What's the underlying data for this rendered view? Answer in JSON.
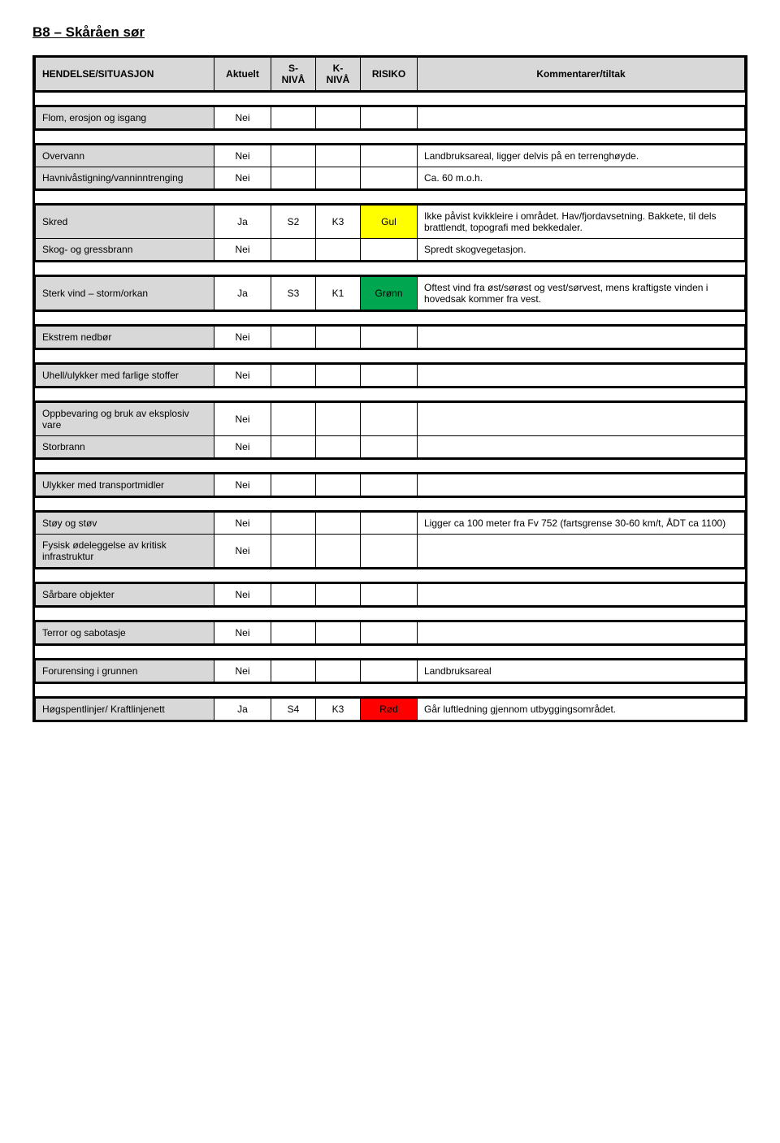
{
  "title": "B8 – Skåråen sør",
  "headers": {
    "hendelse": "HENDELSE/SITUASJON",
    "aktuelt": "Aktuelt",
    "sniva": "S-\nNIVÅ",
    "kniva": "K-\nNIVÅ",
    "risiko": "RISIKO",
    "kommentarer": "Kommentarer/tiltak"
  },
  "colors": {
    "header_bg": "#d8d8d8",
    "gul": "#ffff00",
    "gronn": "#00a650",
    "rod": "#ff0000"
  },
  "rows": [
    {
      "label": "Flom, erosjon og isgang",
      "aktuelt": "Nei",
      "s": "",
      "k": "",
      "risiko": "",
      "risk_color": "",
      "komm": ""
    },
    {
      "label": "Overvann",
      "aktuelt": "Nei",
      "s": "",
      "k": "",
      "risiko": "",
      "risk_color": "",
      "komm": "Landbruksareal, ligger delvis på en terrenghøyde."
    },
    {
      "label": "Havnivåstigning/vanninntrenging",
      "aktuelt": "Nei",
      "s": "",
      "k": "",
      "risiko": "",
      "risk_color": "",
      "komm": "Ca. 60 m.o.h."
    },
    {
      "label": "Skred",
      "aktuelt": "Ja",
      "s": "S2",
      "k": "K3",
      "risiko": "Gul",
      "risk_color": "#ffff00",
      "komm": "Ikke påvist kvikkleire i området. Hav/fjordavsetning. Bakkete, til dels brattlendt, topografi med bekkedaler."
    },
    {
      "label": "Skog- og gressbrann",
      "aktuelt": "Nei",
      "s": "",
      "k": "",
      "risiko": "",
      "risk_color": "",
      "komm": "Spredt skogvegetasjon."
    },
    {
      "label": "Sterk vind – storm/orkan",
      "aktuelt": "Ja",
      "s": "S3",
      "k": "K1",
      "risiko": "Grønn",
      "risk_color": "#00a650",
      "komm": "Oftest vind fra øst/sørøst og vest/sørvest, mens kraftigste vinden i hovedsak kommer fra vest."
    },
    {
      "label": "Ekstrem nedbør",
      "aktuelt": "Nei",
      "s": "",
      "k": "",
      "risiko": "",
      "risk_color": "",
      "komm": ""
    },
    {
      "label": "Uhell/ulykker med farlige stoffer",
      "aktuelt": "Nei",
      "s": "",
      "k": "",
      "risiko": "",
      "risk_color": "",
      "komm": ""
    },
    {
      "label": "Oppbevaring og bruk av eksplosiv vare",
      "aktuelt": "Nei",
      "s": "",
      "k": "",
      "risiko": "",
      "risk_color": "",
      "komm": ""
    },
    {
      "label": "Storbrann",
      "aktuelt": "Nei",
      "s": "",
      "k": "",
      "risiko": "",
      "risk_color": "",
      "komm": ""
    },
    {
      "label": "Ulykker med transportmidler",
      "aktuelt": "Nei",
      "s": "",
      "k": "",
      "risiko": "",
      "risk_color": "",
      "komm": ""
    },
    {
      "label": "Støy og støv",
      "aktuelt": "Nei",
      "s": "",
      "k": "",
      "risiko": "",
      "risk_color": "",
      "komm": "Ligger ca 100 meter fra Fv 752 (fartsgrense 30-60 km/t, ÅDT ca 1100)"
    },
    {
      "label": "Fysisk ødeleggelse av kritisk infrastruktur",
      "aktuelt": "Nei",
      "s": "",
      "k": "",
      "risiko": "",
      "risk_color": "",
      "komm": ""
    },
    {
      "label": "Sårbare objekter",
      "aktuelt": "Nei",
      "s": "",
      "k": "",
      "risiko": "",
      "risk_color": "",
      "komm": ""
    },
    {
      "label": "Terror og sabotasje",
      "aktuelt": "Nei",
      "s": "",
      "k": "",
      "risiko": "",
      "risk_color": "",
      "komm": ""
    },
    {
      "label": "Forurensing i grunnen",
      "aktuelt": "Nei",
      "s": "",
      "k": "",
      "risiko": "",
      "risk_color": "",
      "komm": "Landbruksareal"
    },
    {
      "label": "Høgspentlinjer/ Kraftlinjenett",
      "aktuelt": "Ja",
      "s": "S4",
      "k": "K3",
      "risiko": "Rød",
      "risk_color": "#ff0000",
      "komm": "Går luftledning gjennom utbyggingsområdet."
    }
  ],
  "groups": [
    [
      0
    ],
    [
      1,
      2
    ],
    [
      3,
      4
    ],
    [
      5
    ],
    [
      6
    ],
    [
      7
    ],
    [
      8,
      9
    ],
    [
      10
    ],
    [
      11,
      12
    ],
    [
      13
    ],
    [
      14
    ],
    [
      15
    ],
    [
      16
    ]
  ]
}
